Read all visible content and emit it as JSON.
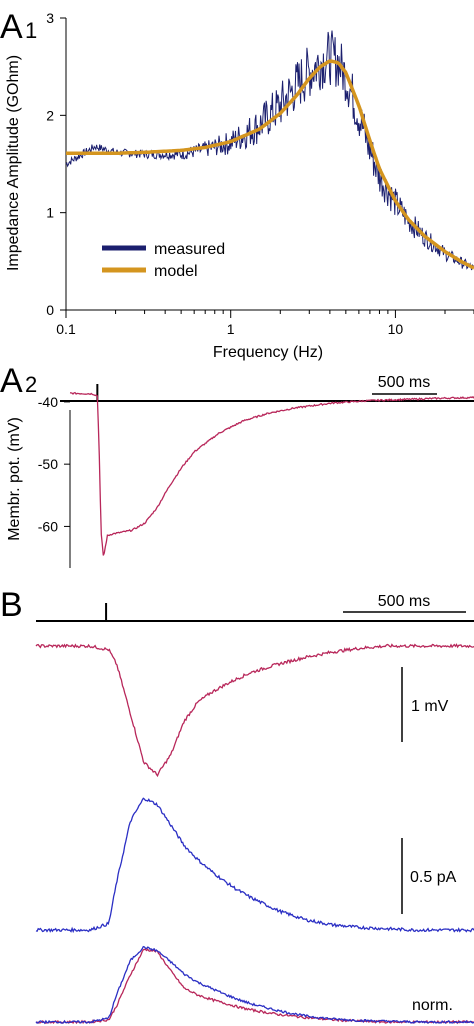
{
  "colors": {
    "measured": "#1b1f6e",
    "model": "#d4951f",
    "membrane": "#b8275a",
    "current": "#2b2fc4",
    "axis": "#000000"
  },
  "panels": {
    "a1": {
      "letter": "A",
      "sub": "1"
    },
    "a2": {
      "letter": "A",
      "sub": "2"
    },
    "b": {
      "letter": "B"
    }
  },
  "scalebars": {
    "a2_time": "500 ms",
    "b_time": "500 ms",
    "b_voltage": "1 mV",
    "b_current": "0.5 pA",
    "b_norm": "norm."
  },
  "chart_data": [
    {
      "id": "impedance",
      "type": "line",
      "xlabel": "Frequency (Hz)",
      "ylabel": "Impedance Amplitude (GOhm)",
      "xscale": "log",
      "xlim": [
        0.1,
        30
      ],
      "ylim": [
        0,
        3
      ],
      "xticks": [
        0.1,
        1,
        10
      ],
      "xtick_labels": [
        "0.1",
        "1",
        "10"
      ],
      "yticks": [
        0,
        1,
        2,
        3
      ],
      "ytick_labels": [
        "0",
        "1",
        "2",
        "3"
      ],
      "legend_position": "bottom-left",
      "series": [
        {
          "name": "measured",
          "color": "#1b1f6e",
          "x": [
            0.1,
            0.15,
            0.2,
            0.3,
            0.5,
            0.7,
            1,
            1.5,
            2,
            2.5,
            3,
            3.5,
            4,
            4.5,
            5,
            6,
            7,
            8,
            10,
            12,
            15,
            20,
            25,
            30
          ],
          "y": [
            1.5,
            1.68,
            1.62,
            1.6,
            1.6,
            1.65,
            1.72,
            1.9,
            2.1,
            2.3,
            2.45,
            2.55,
            2.6,
            2.55,
            2.4,
            2.0,
            1.65,
            1.38,
            1.1,
            0.92,
            0.75,
            0.58,
            0.49,
            0.42
          ],
          "noise": 0.25
        },
        {
          "name": "model",
          "color": "#d4951f",
          "x": [
            0.1,
            0.2,
            0.3,
            0.5,
            0.7,
            1,
            1.5,
            2,
            2.5,
            3,
            3.5,
            4,
            4.5,
            5,
            6,
            7,
            8,
            10,
            12,
            15,
            20,
            25,
            30
          ],
          "y": [
            1.61,
            1.61,
            1.62,
            1.64,
            1.67,
            1.73,
            1.86,
            2.02,
            2.2,
            2.38,
            2.5,
            2.56,
            2.54,
            2.44,
            2.1,
            1.74,
            1.45,
            1.12,
            0.93,
            0.76,
            0.6,
            0.5,
            0.43
          ]
        }
      ]
    },
    {
      "id": "membrane-potential",
      "type": "line",
      "ylabel": "Membr. pot. (mV)",
      "ylim": [
        -67,
        -36
      ],
      "yticks": [
        -60,
        -50,
        -40
      ],
      "ytick_labels": [
        "-60",
        "-50",
        "-40"
      ],
      "xlim": [
        0,
        3250
      ],
      "x_unit": "ms",
      "stimulus_ms": 220,
      "series": [
        {
          "name": "",
          "color": "#b8275a",
          "x": [
            0,
            180,
            220,
            235,
            250,
            270,
            300,
            340,
            400,
            500,
            600,
            700,
            800,
            900,
            1000,
            1200,
            1400,
            1600,
            1800,
            2100,
            2400,
            2700,
            3000,
            3250
          ],
          "y": [
            -38.6,
            -38.7,
            -39,
            -48,
            -61,
            -65,
            -61.5,
            -61.2,
            -61,
            -60.6,
            -59.5,
            -57,
            -53.5,
            -50.5,
            -48,
            -45,
            -43,
            -41.8,
            -41,
            -40.2,
            -39.8,
            -39.6,
            -39.4,
            -39.3
          ]
        }
      ]
    },
    {
      "id": "panel-b-traces",
      "type": "line",
      "xlim": [
        0,
        3250
      ],
      "x_unit": "ms",
      "stimulus_ms": 520,
      "series": [
        {
          "name": "",
          "color": "#b8275a",
          "x": [
            0,
            200,
            400,
            540,
            600,
            700,
            800,
            900,
            1000,
            1100,
            1200,
            1300,
            1400,
            1500,
            1600,
            1800,
            2000,
            2200,
            2400,
            2600,
            2800,
            3000,
            3250
          ],
          "y": [
            0,
            0,
            0,
            -0.05,
            -0.25,
            -0.9,
            -1.55,
            -1.72,
            -1.45,
            -1.0,
            -0.75,
            -0.62,
            -0.52,
            -0.43,
            -0.35,
            -0.24,
            -0.15,
            -0.08,
            -0.03,
            0,
            0,
            0,
            0
          ]
        },
        {
          "name": "",
          "color": "#2b2fc4",
          "x": [
            0,
            200,
            400,
            540,
            600,
            700,
            800,
            900,
            1000,
            1100,
            1200,
            1300,
            1400,
            1500,
            1600,
            1800,
            2000,
            2200,
            2400,
            2600,
            2800,
            3000,
            3250
          ],
          "y": [
            0,
            0,
            0,
            0.05,
            0.38,
            0.85,
            1.03,
            0.98,
            0.82,
            0.66,
            0.55,
            0.46,
            0.38,
            0.31,
            0.25,
            0.15,
            0.08,
            0.04,
            0.02,
            0.01,
            0,
            0,
            0
          ]
        },
        {
          "name": "",
          "color": "#b8275a",
          "x": [
            0,
            200,
            400,
            540,
            600,
            700,
            800,
            900,
            1000,
            1100,
            1200,
            1300,
            1400,
            1500,
            1600,
            1800,
            2000,
            2200,
            2400,
            2600,
            2800,
            3000,
            3250
          ],
          "y": [
            0,
            0,
            0,
            0.03,
            0.22,
            0.63,
            0.97,
            0.94,
            0.68,
            0.45,
            0.36,
            0.3,
            0.25,
            0.2,
            0.16,
            0.1,
            0.06,
            0.03,
            0.01,
            0,
            0,
            0,
            0
          ]
        },
        {
          "name": "",
          "color": "#2b2fc4",
          "x": [
            0,
            200,
            400,
            540,
            600,
            700,
            800,
            900,
            1000,
            1100,
            1200,
            1300,
            1400,
            1500,
            1600,
            1800,
            2000,
            2200,
            2400,
            2600,
            2800,
            3000,
            3250
          ],
          "y": [
            0,
            0,
            0,
            0.05,
            0.37,
            0.82,
            1.0,
            0.95,
            0.8,
            0.64,
            0.53,
            0.45,
            0.37,
            0.3,
            0.24,
            0.15,
            0.08,
            0.04,
            0.02,
            0.01,
            0,
            0,
            0
          ]
        }
      ]
    }
  ]
}
